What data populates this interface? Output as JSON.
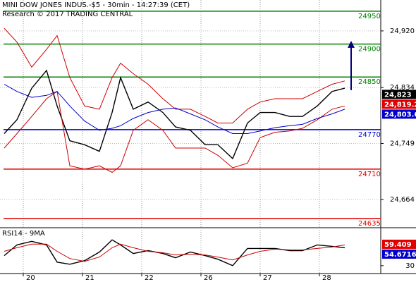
{
  "chart_data": [
    {
      "type": "line",
      "title": "MINI DOW JONES INDUS.-$5 - 30min - 14:27:39 (CET)",
      "subtitle": "Research © 2017 TRADING CENTRAL",
      "x": [
        2,
        8,
        15,
        22,
        27,
        33,
        40,
        47,
        53,
        57,
        63,
        70,
        77,
        83,
        90,
        97,
        103,
        110,
        117,
        123,
        130,
        137,
        143,
        150,
        157,
        163
      ],
      "xlim": [
        0,
        180
      ],
      "xticks": [
        {
          "value": 11,
          "label": "20"
        },
        {
          "value": 39,
          "label": "21"
        },
        {
          "value": 67,
          "label": "22"
        },
        {
          "value": 95,
          "label": "26"
        },
        {
          "value": 123,
          "label": "27"
        },
        {
          "value": 151,
          "label": "28"
        }
      ],
      "ylim": [
        24622,
        24967
      ],
      "yticks": [
        {
          "value": 24664,
          "label": "24,664"
        },
        {
          "value": 24749,
          "label": "24,749"
        },
        {
          "value": 24834,
          "label": "24,834"
        },
        {
          "value": 24920,
          "label": "24,920"
        }
      ],
      "grid": true,
      "series": [
        {
          "name": "Price",
          "color": "#000000",
          "values": [
            24764,
            24785,
            24833,
            24860,
            24806,
            24753,
            24747,
            24737,
            24796,
            24849,
            24801,
            24812,
            24796,
            24774,
            24769,
            24747,
            24747,
            24726,
            24780,
            24796,
            24796,
            24790,
            24790,
            24806,
            24828,
            24833
          ]
        },
        {
          "name": "Upper band",
          "color": "#cc0000",
          "values": [
            24924,
            24903,
            24865,
            24892,
            24913,
            24849,
            24806,
            24801,
            24849,
            24871,
            24855,
            24839,
            24817,
            24801,
            24801,
            24790,
            24780,
            24780,
            24801,
            24812,
            24817,
            24817,
            24817,
            24828,
            24839,
            24844
          ]
        },
        {
          "name": "Lower band",
          "color": "#cc0000",
          "values": [
            24742,
            24764,
            24790,
            24817,
            24828,
            24715,
            24710,
            24715,
            24705,
            24715,
            24769,
            24785,
            24769,
            24742,
            24742,
            24742,
            24731,
            24712,
            24719,
            24758,
            24766,
            24768,
            24772,
            24785,
            24801,
            24806
          ]
        },
        {
          "name": "Moving average",
          "color": "#0000cc",
          "values": [
            24839,
            24828,
            24819,
            24822,
            24828,
            24806,
            24783,
            24769,
            24772,
            24776,
            24787,
            24796,
            24801,
            24803,
            24794,
            24785,
            24774,
            24764,
            24764,
            24768,
            24773,
            24776,
            24778,
            24787,
            24794,
            24801
          ]
        }
      ],
      "levels": [
        {
          "value": 24950,
          "color": "#008000"
        },
        {
          "value": 24900,
          "color": "#008000"
        },
        {
          "value": 24850,
          "color": "#008000"
        },
        {
          "value": 24770,
          "color": "#0000cc"
        },
        {
          "value": 24710,
          "color": "#e00000"
        },
        {
          "value": 24635,
          "color": "#e00000"
        }
      ],
      "price_tags": [
        {
          "value": 24823,
          "label": "24,823",
          "color": "#000000"
        },
        {
          "value": 24819.2,
          "label": "24,819.2",
          "color": "#e00000"
        },
        {
          "value": 24803.6,
          "label": "24,803.6",
          "color": "#0000cc"
        }
      ],
      "target_arrow": {
        "x": 166,
        "from": 24830,
        "to": 24905,
        "color": "#000080"
      }
    },
    {
      "type": "line",
      "title": "RSI14 - 9MA",
      "x": [
        2,
        8,
        15,
        22,
        27,
        33,
        40,
        47,
        53,
        57,
        63,
        70,
        77,
        83,
        90,
        97,
        103,
        110,
        117,
        123,
        130,
        137,
        143,
        150,
        157,
        163
      ],
      "xlim": [
        0,
        180
      ],
      "ylim": [
        20,
        80
      ],
      "yticks": [
        30
      ],
      "series": [
        {
          "name": "RSI14",
          "color": "#000000",
          "values": [
            44,
            59,
            64,
            59,
            35,
            32,
            37,
            49,
            66,
            59,
            47,
            51,
            47,
            41,
            49,
            44,
            39,
            30,
            54,
            54,
            54,
            51,
            51,
            59,
            57,
            55
          ]
        },
        {
          "name": "9MA",
          "color": "#cc0000",
          "values": [
            50,
            55,
            60,
            60,
            50,
            40,
            36,
            42,
            55,
            60,
            55,
            50,
            48,
            45,
            46,
            45,
            42,
            38,
            45,
            50,
            53,
            52,
            52,
            54,
            56,
            59
          ]
        }
      ],
      "price_tags": [
        {
          "value": 59.409,
          "label": "59.409",
          "color": "#e00000"
        },
        {
          "value": 54.6716,
          "label": "54.6716",
          "color": "#0000cc"
        }
      ]
    }
  ]
}
